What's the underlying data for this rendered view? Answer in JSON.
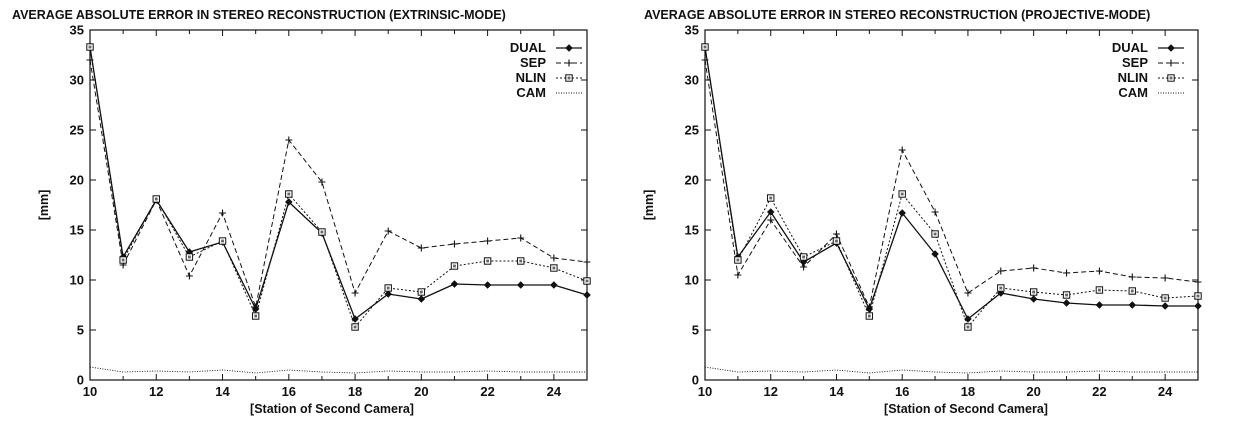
{
  "chart_data": [
    {
      "type": "line",
      "title": "AVERAGE ABSOLUTE ERROR IN STEREO RECONSTRUCTION (EXTRINSIC-MODE)",
      "xlabel": "[Station of Second Camera]",
      "ylabel": "[mm]",
      "xlim": [
        10,
        25
      ],
      "ylim": [
        0,
        35
      ],
      "xticks": [
        10,
        12,
        14,
        16,
        18,
        20,
        22,
        24
      ],
      "yticks": [
        0,
        5,
        10,
        15,
        20,
        25,
        30,
        35
      ],
      "grid": false,
      "legend": "top-right",
      "x": [
        10,
        11,
        12,
        13,
        14,
        15,
        16,
        17,
        18,
        19,
        20,
        21,
        22,
        23,
        24,
        25
      ],
      "series": [
        {
          "name": "DUAL",
          "values": [
            33.3,
            12.3,
            18.0,
            12.8,
            13.8,
            7.1,
            17.8,
            14.7,
            6.1,
            8.6,
            8.1,
            9.6,
            9.5,
            9.5,
            9.5,
            8.5
          ]
        },
        {
          "name": "SEP",
          "values": [
            32.0,
            11.5,
            18.0,
            10.4,
            16.7,
            7.3,
            24.0,
            19.8,
            8.7,
            14.9,
            13.2,
            13.6,
            13.9,
            14.2,
            12.2,
            11.8
          ]
        },
        {
          "name": "NLIN",
          "values": [
            33.3,
            12.0,
            18.1,
            12.3,
            13.9,
            6.4,
            18.6,
            14.8,
            5.3,
            9.2,
            8.8,
            11.4,
            11.9,
            11.9,
            11.2,
            9.9
          ]
        },
        {
          "name": "CAM",
          "values": [
            1.3,
            0.8,
            0.9,
            0.8,
            1.0,
            0.7,
            1.0,
            0.8,
            0.7,
            0.9,
            0.8,
            0.8,
            0.9,
            0.8,
            0.8,
            0.8
          ]
        }
      ]
    },
    {
      "type": "line",
      "title": "AVERAGE ABSOLUTE ERROR IN STEREO RECONSTRUCTION (PROJECTIVE-MODE)",
      "xlabel": "[Station of Second Camera]",
      "ylabel": "[mm]",
      "xlim": [
        10,
        25
      ],
      "ylim": [
        0,
        35
      ],
      "xticks": [
        10,
        12,
        14,
        16,
        18,
        20,
        22,
        24
      ],
      "yticks": [
        0,
        5,
        10,
        15,
        20,
        25,
        30,
        35
      ],
      "grid": false,
      "legend": "top-right",
      "x": [
        10,
        11,
        12,
        13,
        14,
        15,
        16,
        17,
        18,
        19,
        20,
        21,
        22,
        23,
        24,
        25
      ],
      "series": [
        {
          "name": "DUAL",
          "values": [
            33.3,
            12.3,
            16.8,
            11.8,
            13.7,
            7.1,
            16.7,
            12.6,
            6.1,
            8.7,
            8.1,
            7.7,
            7.5,
            7.5,
            7.4,
            7.4
          ]
        },
        {
          "name": "SEP",
          "values": [
            32.0,
            10.5,
            16.0,
            11.3,
            14.6,
            7.3,
            23.0,
            16.8,
            8.7,
            10.9,
            11.2,
            10.7,
            10.9,
            10.3,
            10.2,
            9.8
          ]
        },
        {
          "name": "NLIN",
          "values": [
            33.3,
            12.0,
            18.2,
            12.3,
            13.9,
            6.4,
            18.6,
            14.6,
            5.3,
            9.2,
            8.8,
            8.5,
            9.0,
            8.9,
            8.2,
            8.4
          ]
        },
        {
          "name": "CAM",
          "values": [
            1.3,
            0.8,
            0.9,
            0.8,
            1.0,
            0.7,
            1.0,
            0.8,
            0.7,
            0.9,
            0.8,
            0.8,
            0.9,
            0.8,
            0.8,
            0.8
          ]
        }
      ]
    }
  ]
}
